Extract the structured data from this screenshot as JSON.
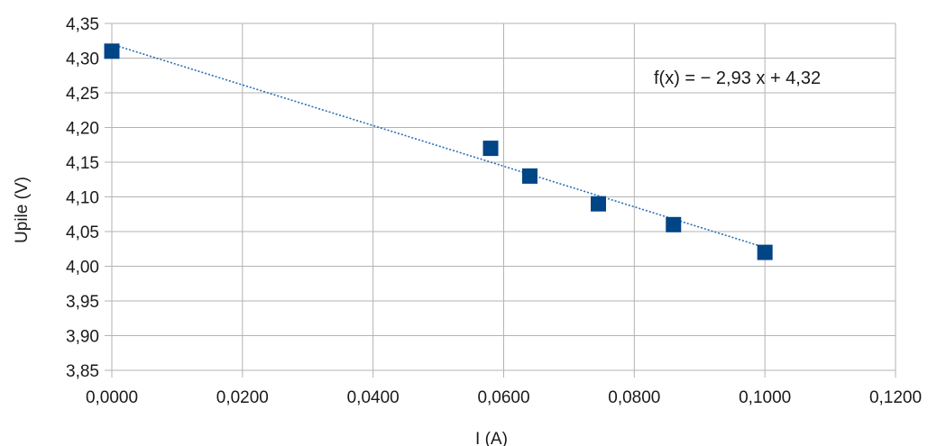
{
  "chart_data": {
    "type": "scatter",
    "title": "",
    "xlabel": "I (A)",
    "ylabel": "Upile (V)",
    "xlim": [
      0,
      0.12
    ],
    "ylim": [
      3.85,
      4.35
    ],
    "grid": true,
    "x_ticks": [
      "0,0000",
      "0,0200",
      "0,0400",
      "0,0600",
      "0,0800",
      "0,1000",
      "0,1200"
    ],
    "y_ticks": [
      "4,35",
      "4,30",
      "4,25",
      "4,20",
      "4,15",
      "4,10",
      "4,05",
      "4,00",
      "3,95",
      "3,90",
      "3,85"
    ],
    "points": [
      {
        "x": 0.0,
        "y": 4.31
      },
      {
        "x": 0.058,
        "y": 4.17
      },
      {
        "x": 0.064,
        "y": 4.13
      },
      {
        "x": 0.0745,
        "y": 4.09
      },
      {
        "x": 0.086,
        "y": 4.06
      },
      {
        "x": 0.1,
        "y": 4.02
      }
    ],
    "trendline": {
      "slope": -2.93,
      "intercept": 4.32,
      "label": "f(x) = − 2,93 x + 4,32"
    },
    "colors": {
      "marker": "#004586",
      "trendline": "#2a6fb5",
      "grid": "#b3b3b3"
    }
  }
}
